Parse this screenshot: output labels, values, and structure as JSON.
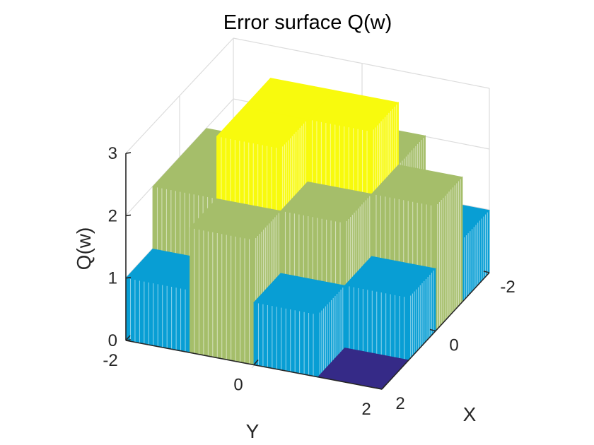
{
  "chart_data": {
    "type": "surface3d",
    "title": "Error surface Q(w)",
    "xlabel": "X",
    "ylabel": "Y",
    "zlabel": "Q(w)",
    "xlim": [
      -2,
      2
    ],
    "ylim": [
      -2,
      2
    ],
    "zlim": [
      0,
      3
    ],
    "xticks": [
      "-2",
      "0",
      "2"
    ],
    "yticks": [
      "-2",
      "0",
      "2"
    ],
    "zticks": [
      "0",
      "1",
      "2",
      "3"
    ],
    "grid": true,
    "colormap": "parula",
    "levels": [
      {
        "z": 0,
        "color": "#352a87"
      },
      {
        "z": 1,
        "color": "#089ed4"
      },
      {
        "z": 2,
        "color": "#a5be6a"
      },
      {
        "z": 3,
        "color": "#f8fa0d"
      }
    ],
    "grid_values": {
      "x": [
        -2,
        -1,
        0,
        1,
        2
      ],
      "y": [
        -2,
        -1,
        0,
        1,
        2
      ],
      "note_rows_indexed_by_x": [
        [
          1,
          2,
          2,
          1,
          1
        ],
        [
          2,
          3,
          3,
          2,
          1
        ],
        [
          2,
          3,
          2,
          1,
          1
        ],
        [
          1,
          2,
          1,
          0,
          0
        ],
        [
          1,
          1,
          1,
          0,
          0
        ]
      ]
    }
  }
}
